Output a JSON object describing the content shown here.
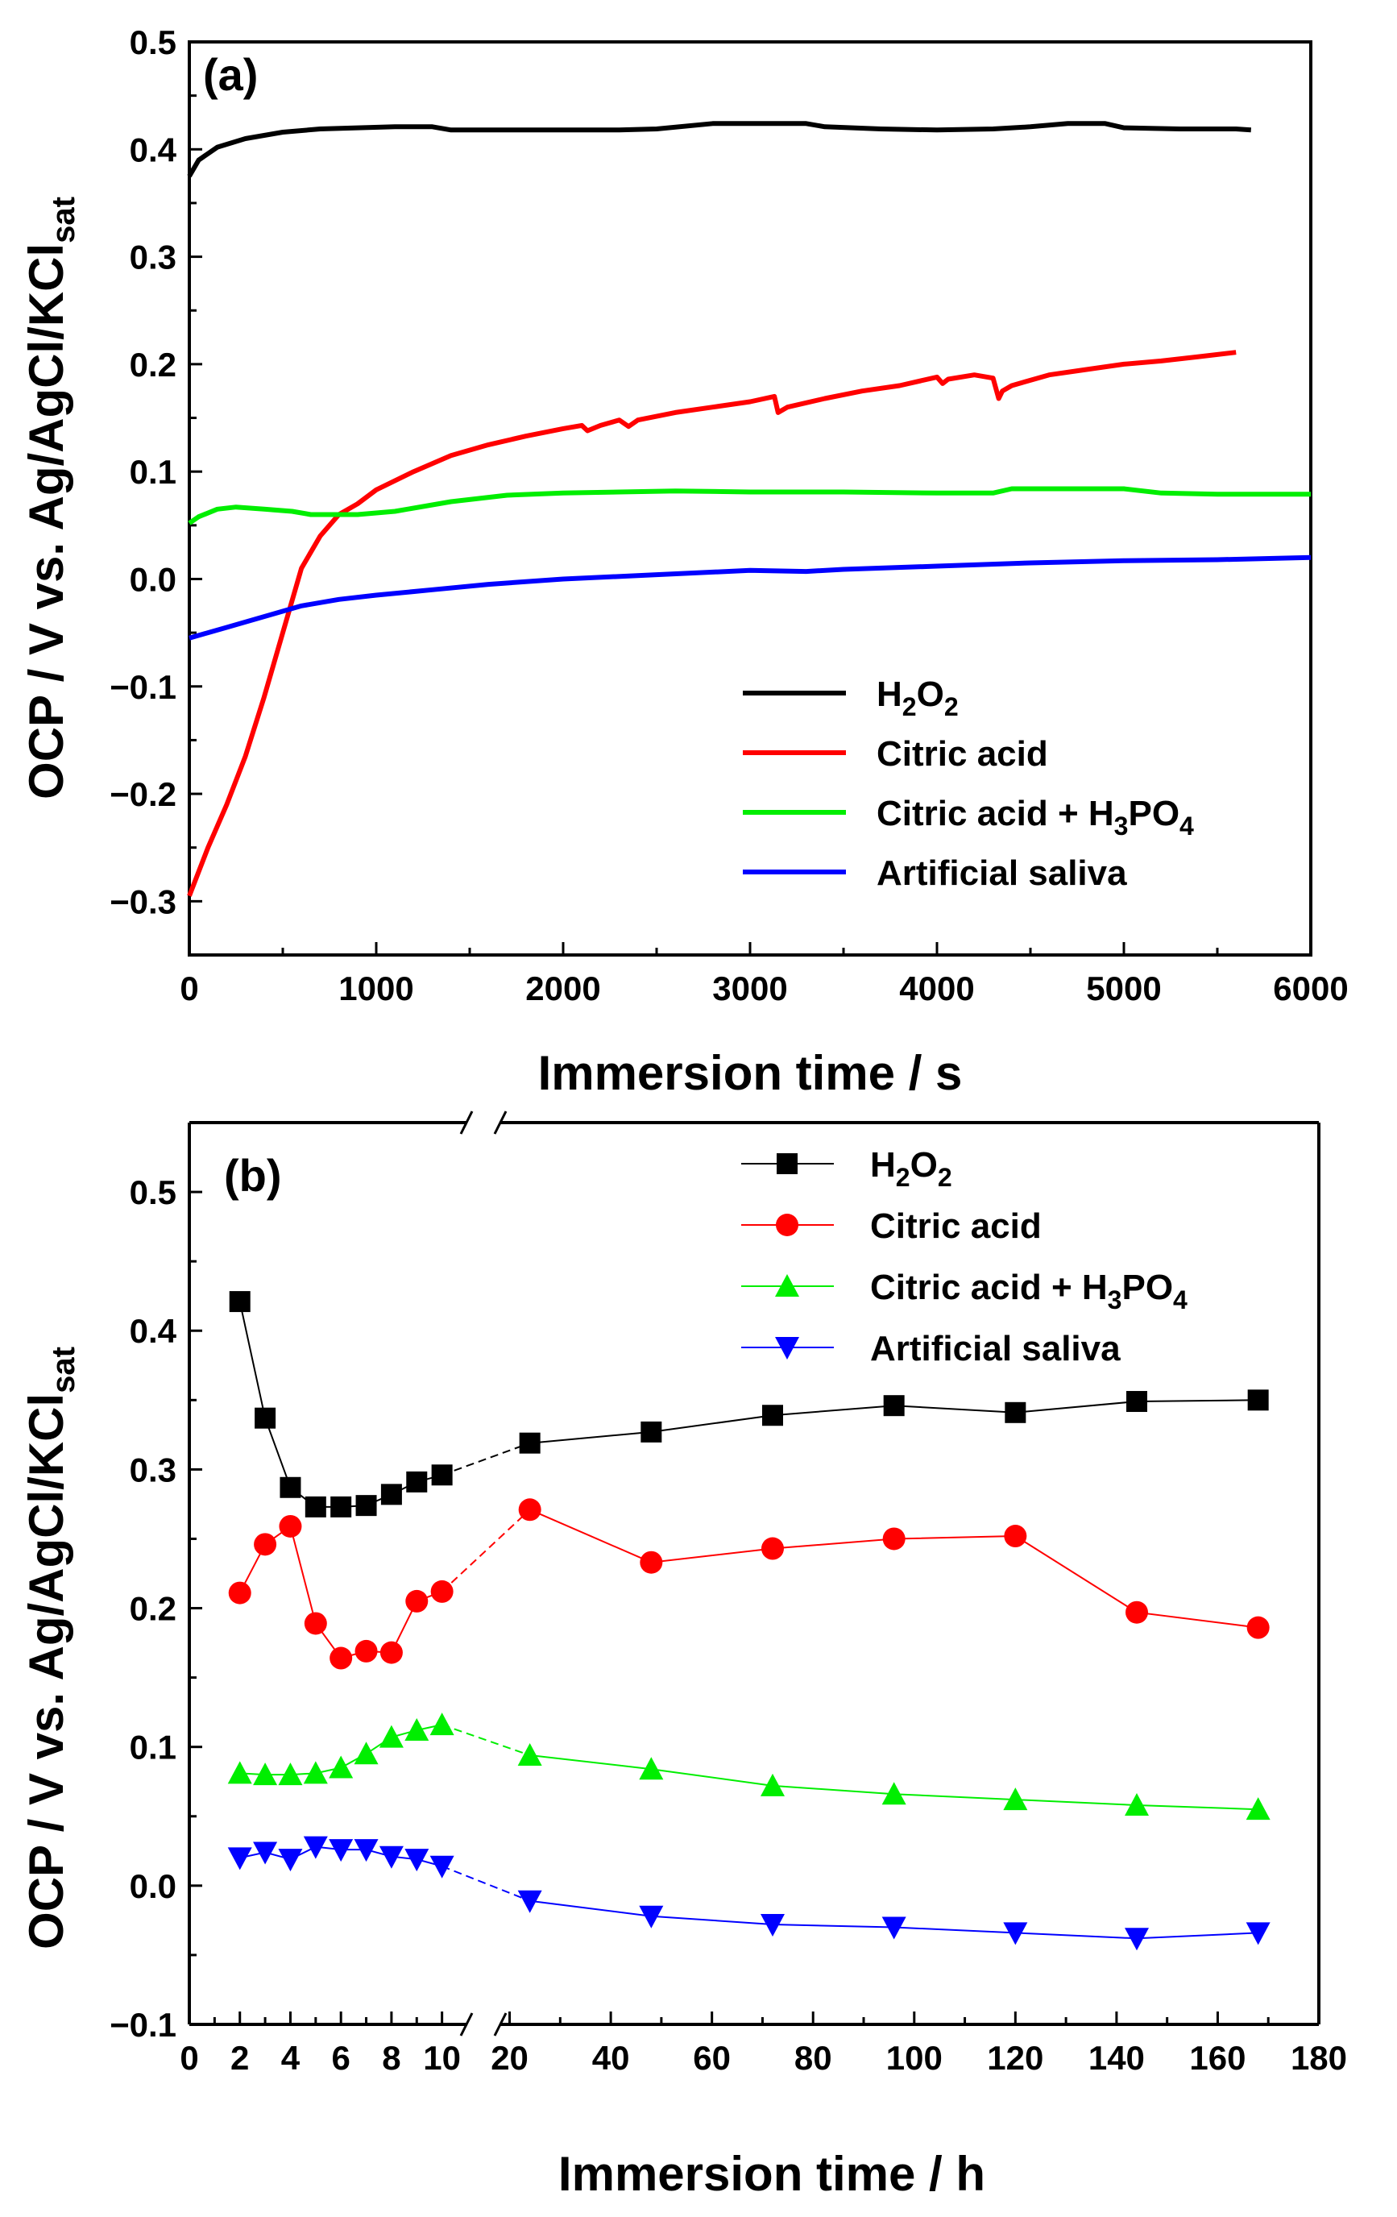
{
  "chart_data": [
    {
      "type": "line",
      "panel_label": "(a)",
      "xlabel": "Immersion time / s",
      "ylabel": "OCP / V vs. Ag/AgCl/KCl",
      "ylabel_sub": "sat",
      "xlim": [
        0,
        6000
      ],
      "ylim": [
        -0.35,
        0.5
      ],
      "x_ticks": [
        0,
        1000,
        2000,
        3000,
        4000,
        5000,
        6000
      ],
      "x_tick_labels": [
        "0",
        "1000",
        "2000",
        "3000",
        "4000",
        "5000",
        "6000"
      ],
      "y_ticks": [
        -0.3,
        -0.2,
        -0.1,
        0.0,
        0.1,
        0.2,
        0.3,
        0.4,
        0.5
      ],
      "y_tick_labels": [
        "−0.3",
        "−0.2",
        "−0.1",
        "0.0",
        "0.1",
        "0.2",
        "0.3",
        "0.4",
        "0.5"
      ],
      "legend_position": "bottom-right",
      "series": [
        {
          "name": "H2O2",
          "label_main": "H",
          "label_sub1": "2",
          "label_mid": "O",
          "label_sub2": "2",
          "label_tail": "",
          "color": "#000000",
          "x": [
            0,
            50,
            150,
            300,
            500,
            700,
            900,
            1100,
            1300,
            1400,
            1700,
            2000,
            2300,
            2500,
            2800,
            3000,
            3300,
            3400,
            3700,
            4000,
            4300,
            4500,
            4700,
            4900,
            5000,
            5300,
            5600,
            5680
          ],
          "y": [
            0.375,
            0.39,
            0.402,
            0.41,
            0.416,
            0.419,
            0.42,
            0.421,
            0.421,
            0.418,
            0.418,
            0.418,
            0.418,
            0.419,
            0.424,
            0.424,
            0.424,
            0.421,
            0.419,
            0.418,
            0.419,
            0.421,
            0.424,
            0.424,
            0.42,
            0.419,
            0.419,
            0.418
          ]
        },
        {
          "name": "Citric acid",
          "label_main": "Citric acid",
          "label_sub1": "",
          "label_mid": "",
          "label_sub2": "",
          "label_tail": "",
          "color": "#ff0000",
          "x": [
            0,
            100,
            200,
            300,
            400,
            500,
            600,
            700,
            800,
            900,
            1000,
            1200,
            1400,
            1600,
            1800,
            2000,
            2100,
            2130,
            2200,
            2300,
            2350,
            2400,
            2600,
            2800,
            3000,
            3130,
            3150,
            3200,
            3400,
            3600,
            3800,
            4000,
            4030,
            4060,
            4200,
            4300,
            4330,
            4350,
            4400,
            4600,
            4800,
            5000,
            5200,
            5400,
            5600
          ],
          "y": [
            -0.295,
            -0.25,
            -0.21,
            -0.165,
            -0.11,
            -0.05,
            0.01,
            0.04,
            0.06,
            0.07,
            0.083,
            0.1,
            0.115,
            0.125,
            0.133,
            0.14,
            0.143,
            0.138,
            0.143,
            0.148,
            0.142,
            0.148,
            0.155,
            0.16,
            0.165,
            0.17,
            0.155,
            0.16,
            0.168,
            0.175,
            0.18,
            0.188,
            0.182,
            0.186,
            0.19,
            0.187,
            0.168,
            0.175,
            0.18,
            0.19,
            0.195,
            0.2,
            0.203,
            0.207,
            0.211
          ]
        },
        {
          "name": "Citric acid + H3PO4",
          "label_main": "Citric acid + H",
          "label_sub1": "3",
          "label_mid": "PO",
          "label_sub2": "4",
          "label_tail": "",
          "color": "#00ee00",
          "x": [
            0,
            50,
            150,
            250,
            400,
            550,
            650,
            750,
            900,
            1100,
            1400,
            1700,
            2000,
            2300,
            2600,
            3000,
            3500,
            4000,
            4300,
            4400,
            4700,
            5000,
            5200,
            5500,
            6000
          ],
          "y": [
            0.052,
            0.058,
            0.065,
            0.067,
            0.065,
            0.063,
            0.06,
            0.06,
            0.06,
            0.063,
            0.072,
            0.078,
            0.08,
            0.081,
            0.082,
            0.081,
            0.081,
            0.08,
            0.08,
            0.084,
            0.084,
            0.084,
            0.08,
            0.079,
            0.079
          ]
        },
        {
          "name": "Artificial saliva",
          "label_main": "Artificial saliva",
          "label_sub1": "",
          "label_mid": "",
          "label_sub2": "",
          "label_tail": "",
          "color": "#0000ff",
          "x": [
            0,
            100,
            200,
            400,
            600,
            800,
            1000,
            1300,
            1600,
            2000,
            2500,
            3000,
            3300,
            3500,
            4000,
            4500,
            5000,
            5500,
            6000
          ],
          "y": [
            -0.055,
            -0.05,
            -0.045,
            -0.035,
            -0.025,
            -0.019,
            -0.015,
            -0.01,
            -0.005,
            0.0,
            0.004,
            0.008,
            0.007,
            0.009,
            0.012,
            0.015,
            0.017,
            0.018,
            0.02
          ]
        }
      ]
    },
    {
      "type": "line",
      "marker_line": true,
      "panel_label": "(b)",
      "xlabel": "Immersion time / h",
      "ylabel": "OCP / V vs. Ag/AgCl/KCl",
      "ylabel_sub": "sat",
      "broken_x_axis": true,
      "segment1_xlim": [
        0,
        11
      ],
      "segment1_ticks": [
        0,
        2,
        4,
        6,
        8,
        10
      ],
      "segment1_tick_labels": [
        "0",
        "2",
        "4",
        "6",
        "8",
        "10"
      ],
      "segment2_xlim": [
        18,
        180
      ],
      "segment2_ticks": [
        20,
        40,
        60,
        80,
        100,
        120,
        140,
        160,
        180
      ],
      "segment2_tick_labels": [
        "20",
        "40",
        "60",
        "80",
        "100",
        "120",
        "140",
        "160",
        "180"
      ],
      "ylim": [
        -0.1,
        0.55
      ],
      "y_ticks": [
        -0.1,
        0.0,
        0.1,
        0.2,
        0.3,
        0.4,
        0.5
      ],
      "y_tick_labels": [
        "−0.1",
        "0.0",
        "0.1",
        "0.2",
        "0.3",
        "0.4",
        "0.5"
      ],
      "legend_position": "top-right",
      "x": [
        2,
        3,
        4,
        5,
        6,
        7,
        8,
        9,
        10,
        24,
        48,
        72,
        96,
        120,
        144,
        168
      ],
      "series": [
        {
          "name": "H2O2",
          "label_main": "H",
          "label_sub1": "2",
          "label_mid": "O",
          "label_sub2": "2",
          "marker": "square",
          "color": "#000000",
          "values": [
            0.421,
            0.337,
            0.287,
            0.273,
            0.273,
            0.274,
            0.282,
            0.291,
            0.296,
            0.319,
            0.327,
            0.339,
            0.346,
            0.341,
            0.349,
            0.35
          ]
        },
        {
          "name": "Citric acid",
          "label_main": "Citric acid",
          "label_sub1": "",
          "label_mid": "",
          "label_sub2": "",
          "marker": "circle",
          "color": "#ff0000",
          "values": [
            0.211,
            0.246,
            0.259,
            0.189,
            0.164,
            0.169,
            0.168,
            0.205,
            0.212,
            0.271,
            0.233,
            0.243,
            0.25,
            0.252,
            0.197,
            0.186
          ]
        },
        {
          "name": "Citric acid + H3PO4",
          "label_main": "Citric acid + H",
          "label_sub1": "3",
          "label_mid": "PO",
          "label_sub2": "4",
          "marker": "triangle-up",
          "color": "#00ee00",
          "values": [
            0.081,
            0.08,
            0.08,
            0.081,
            0.085,
            0.095,
            0.107,
            0.112,
            0.116,
            0.094,
            0.084,
            0.072,
            0.066,
            0.062,
            0.058,
            0.055
          ]
        },
        {
          "name": "Artificial saliva",
          "label_main": "Artificial saliva",
          "label_sub1": "",
          "label_mid": "",
          "label_sub2": "",
          "marker": "triangle-down",
          "color": "#0000ff",
          "values": [
            0.02,
            0.024,
            0.019,
            0.028,
            0.026,
            0.026,
            0.021,
            0.019,
            0.014,
            -0.011,
            -0.022,
            -0.028,
            -0.03,
            -0.034,
            -0.038,
            -0.034
          ]
        }
      ]
    }
  ]
}
